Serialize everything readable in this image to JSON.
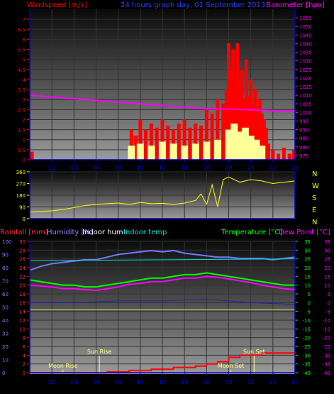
{
  "colors": {
    "windspeed": "#ff0000",
    "gust_band": "#ffff99",
    "avg_wind": "#4488cc",
    "barometer": "#ff00ff",
    "direction": "#ffff00",
    "rainfall": "#ff0000",
    "humidity": "#7777ff",
    "indoor_hum": "#ffffff",
    "indoor_temp": "#00dddd",
    "temperature": "#00ff00",
    "dew_point": "#ff00ff",
    "axis": "#0000cc"
  },
  "top_panel": {
    "title": "24 hours graph day, 01 September 2013",
    "left_label": "Windspeed [m/s]",
    "right_label": "Barometer [hpa]"
  },
  "mid_panel": {
    "compass": [
      "N",
      "W",
      "S",
      "E",
      "N"
    ]
  },
  "bottom_panel": {
    "labels": {
      "rainfall": "Rainfall [mm]",
      "humidity": "Humidity [%]",
      "indoor_hum": "Indoor hum",
      "indoor_temp": "Indoor temp",
      "temperature": "Temperature [°C]",
      "dew_point": "Dew Point [°C]"
    },
    "annotations": [
      {
        "text": "Moon Rise",
        "hour": 3.0
      },
      {
        "text": "Sun Rise",
        "hour": 6.3
      },
      {
        "text": "Moon Set",
        "hour": 18.2
      },
      {
        "text": "Sun Set",
        "hour": 20.3
      }
    ]
  },
  "chart_data": [
    {
      "type": "bar",
      "title": "24 hours graph day, 01 September 2013",
      "ylabel": "Windspeed [m/s]",
      "y2label": "Barometer [hpa]",
      "x_ticks": [
        "02",
        "04",
        "06",
        "08",
        "10",
        "12",
        "14",
        "16",
        "18",
        "20",
        "22",
        "00"
      ],
      "ylim": [
        0,
        7.5
      ],
      "y_ticks": [
        "0",
        "0.5",
        "1",
        "1.5",
        "2",
        "2.5",
        "3",
        "3.5",
        "4",
        "4.5",
        "5",
        "5.5",
        "6",
        "6.5",
        "7"
      ],
      "y2lim": [
        972.5,
        1060
      ],
      "y2_ticks": [
        "975",
        "980",
        "985",
        "990",
        "995",
        "1000",
        "1005",
        "1010",
        "1015",
        "1020",
        "1025",
        "1030",
        "1035",
        "1040",
        "1045",
        "1050",
        "1055"
      ],
      "series": [
        {
          "name": "Windspeed [m/s]",
          "type": "bar",
          "x": [
            0.2,
            9.2,
            9.6,
            10.0,
            10.5,
            11.0,
            11.5,
            12.0,
            12.5,
            13.0,
            13.5,
            14.0,
            14.5,
            15.0,
            15.5,
            16.0,
            16.5,
            17.0,
            17.5,
            17.8,
            18.0,
            18.2,
            18.4,
            18.6,
            18.8,
            19.0,
            19.2,
            19.4,
            19.6,
            19.8,
            20.0,
            20.2,
            20.4,
            20.6,
            20.8,
            21.0,
            21.2,
            21.4,
            21.6,
            22.0,
            22.5,
            23.0,
            23.5,
            23.9
          ],
          "y": [
            0.4,
            1.5,
            1.2,
            2.0,
            1.5,
            1.8,
            1.6,
            2.0,
            1.7,
            1.5,
            1.8,
            2.0,
            1.6,
            1.8,
            1.7,
            2.5,
            2.3,
            3.0,
            2.8,
            3.5,
            5.8,
            4.5,
            5.5,
            4.0,
            5.8,
            3.5,
            4.5,
            3.0,
            5.0,
            3.2,
            4.0,
            2.8,
            3.5,
            2.5,
            3.0,
            2.3,
            2.0,
            1.6,
            0.8,
            0.5,
            0.3,
            0.6,
            0.3,
            0.5
          ]
        },
        {
          "name": "Gust band",
          "type": "bar",
          "x": [
            9.2,
            10.0,
            11.0,
            12.0,
            13.0,
            14.0,
            15.0,
            16.0,
            17.0,
            18.0,
            18.5,
            19.0,
            19.5,
            20.0,
            20.5,
            21.0
          ],
          "y": [
            0.7,
            0.8,
            0.7,
            0.9,
            0.8,
            0.7,
            0.8,
            0.9,
            1.0,
            1.5,
            1.8,
            1.4,
            1.6,
            1.2,
            1.0,
            0.7
          ]
        },
        {
          "name": "Barometer [hpa]",
          "type": "line",
          "axis": "right",
          "x": [
            0,
            2,
            4,
            6,
            8,
            10,
            12,
            14,
            16,
            18,
            20,
            22,
            24
          ],
          "y": [
            1010,
            1009,
            1008,
            1007,
            1006,
            1005,
            1004,
            1003,
            1002,
            1002,
            1001.5,
            1001,
            1001
          ]
        }
      ]
    },
    {
      "type": "line",
      "y_ticks": [
        "0",
        "90",
        "180",
        "270",
        "360"
      ],
      "ylim": [
        0,
        360
      ],
      "x_ticks": [
        "02",
        "04",
        "06",
        "08",
        "10",
        "12",
        "14",
        "16",
        "18",
        "20",
        "22",
        "00"
      ],
      "series": [
        {
          "name": "Wind direction",
          "x": [
            0,
            1,
            2,
            3,
            4,
            5,
            6,
            7,
            8,
            9,
            10,
            11,
            12,
            13,
            14,
            15,
            15.5,
            16,
            16.5,
            17,
            17.5,
            18,
            19,
            20,
            21,
            22,
            23,
            24
          ],
          "y": [
            50,
            55,
            60,
            70,
            85,
            100,
            110,
            115,
            120,
            110,
            125,
            115,
            118,
            110,
            120,
            140,
            190,
            110,
            260,
            90,
            300,
            320,
            280,
            300,
            290,
            270,
            280,
            290
          ]
        }
      ]
    },
    {
      "type": "line",
      "x_ticks": [
        "02",
        "04",
        "06",
        "08",
        "10",
        "12",
        "14",
        "16",
        "18",
        "20",
        "22",
        "00"
      ],
      "y_left_humidity_ticks": [
        "0",
        "10",
        "20",
        "30",
        "40",
        "50",
        "60",
        "70",
        "80",
        "90",
        "100"
      ],
      "y_left_rain_ticks": [
        "0",
        "2",
        "4",
        "6",
        "8",
        "10",
        "12",
        "14",
        "16",
        "18",
        "20",
        "22",
        "24",
        "26",
        "28",
        "30"
      ],
      "y_right_temp_ticks": [
        "35",
        "30",
        "25",
        "20",
        "15",
        "10",
        "5",
        "0",
        "-5",
        "-10",
        "-15",
        "-20",
        "-25",
        "-30",
        "-35",
        "-40"
      ],
      "series": [
        {
          "name": "Humidity [%]",
          "axis": "humidity",
          "x": [
            0,
            1,
            2,
            3,
            4,
            5,
            6,
            7,
            8,
            9,
            10,
            11,
            12,
            13,
            14,
            15,
            16,
            17,
            18,
            19,
            20,
            21,
            22,
            23,
            24
          ],
          "y": [
            78,
            81,
            83,
            84,
            85,
            86,
            86,
            88,
            90,
            91,
            92,
            93,
            92,
            93,
            91,
            90,
            89,
            88,
            88,
            87,
            87,
            87,
            86,
            87,
            88
          ]
        },
        {
          "name": "Indoor temp",
          "axis": "temp",
          "x": [
            0,
            24
          ],
          "y": [
            24,
            25
          ]
        },
        {
          "name": "Temperature [°C]",
          "axis": "temp",
          "x": [
            0,
            1,
            2,
            3,
            4,
            5,
            6,
            7,
            8,
            9,
            10,
            11,
            12,
            13,
            14,
            15,
            16,
            17,
            18,
            19,
            20,
            21,
            22,
            23,
            24
          ],
          "y": [
            13,
            12,
            11,
            10,
            10,
            9,
            9,
            10,
            11,
            12,
            13,
            14,
            14,
            15,
            16,
            16,
            17,
            16,
            15,
            14,
            13,
            12,
            11,
            10,
            10
          ]
        },
        {
          "name": "Dew Point [°C]",
          "axis": "temp",
          "x": [
            0,
            1,
            2,
            3,
            4,
            5,
            6,
            7,
            8,
            9,
            10,
            11,
            12,
            13,
            14,
            15,
            16,
            17,
            18,
            19,
            20,
            21,
            22,
            23,
            24
          ],
          "y": [
            10,
            9.5,
            9,
            8,
            8,
            7.5,
            7,
            8,
            9,
            10.5,
            11,
            12,
            12,
            13,
            14,
            14,
            15,
            14.5,
            13.5,
            12.5,
            11.5,
            10,
            9,
            8,
            7.5
          ]
        },
        {
          "name": "Indoor hum",
          "axis": "humidity",
          "x": [
            0,
            24
          ],
          "y": [
            48,
            48
          ]
        },
        {
          "name": "Outdoor temp trace",
          "axis": "temp",
          "x": [
            0,
            4,
            8,
            12,
            16,
            20,
            24
          ],
          "y": [
            0,
            0,
            1,
            1,
            2,
            0,
            -1
          ]
        },
        {
          "name": "Rainfall [mm]",
          "axis": "rain",
          "x": [
            0,
            5,
            7,
            9,
            11,
            13,
            15,
            16,
            17,
            18,
            19,
            20,
            21,
            22,
            23,
            24
          ],
          "y": [
            0,
            0,
            0.2,
            0.5,
            0.8,
            1.2,
            1.5,
            2.0,
            2.5,
            3.5,
            4.0,
            4.0,
            4.5,
            4.5,
            4.5,
            4.5
          ]
        }
      ]
    }
  ]
}
